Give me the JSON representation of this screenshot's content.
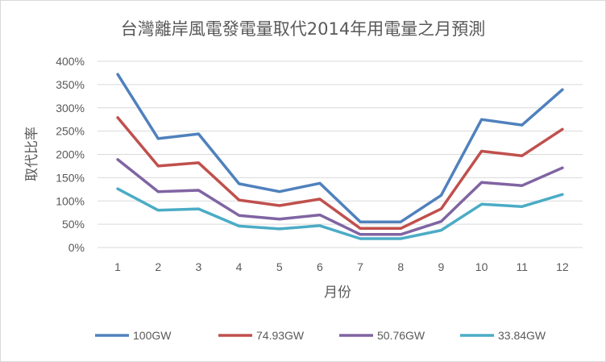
{
  "chart_data": {
    "type": "line",
    "title": "台灣離岸風電發電量取代2014年用電量之月預測",
    "xlabel": "月份",
    "ylabel": "取代比率",
    "categories": [
      "1",
      "2",
      "3",
      "4",
      "5",
      "6",
      "7",
      "8",
      "9",
      "10",
      "11",
      "12"
    ],
    "ylim": [
      0,
      400
    ],
    "yticks": [
      0,
      50,
      100,
      150,
      200,
      250,
      300,
      350,
      400
    ],
    "ytick_labels": [
      "0%",
      "50%",
      "100%",
      "150%",
      "200%",
      "250%",
      "300%",
      "350%",
      "400%"
    ],
    "grid": true,
    "legend_position": "bottom",
    "series": [
      {
        "name": "100GW",
        "color": "#4f81bd",
        "values": [
          372,
          234,
          244,
          137,
          120,
          138,
          55,
          55,
          112,
          275,
          263,
          339
        ]
      },
      {
        "name": "74.93GW",
        "color": "#c0504d",
        "values": [
          279,
          175,
          182,
          102,
          90,
          104,
          41,
          41,
          83,
          207,
          197,
          254
        ]
      },
      {
        "name": "50.76GW",
        "color": "#8064a2",
        "values": [
          189,
          120,
          123,
          69,
          61,
          70,
          28,
          28,
          56,
          140,
          133,
          171
        ]
      },
      {
        "name": "33.84GW",
        "color": "#4bacc6",
        "values": [
          126,
          80,
          83,
          46,
          40,
          47,
          19,
          19,
          37,
          93,
          88,
          114
        ]
      }
    ]
  }
}
